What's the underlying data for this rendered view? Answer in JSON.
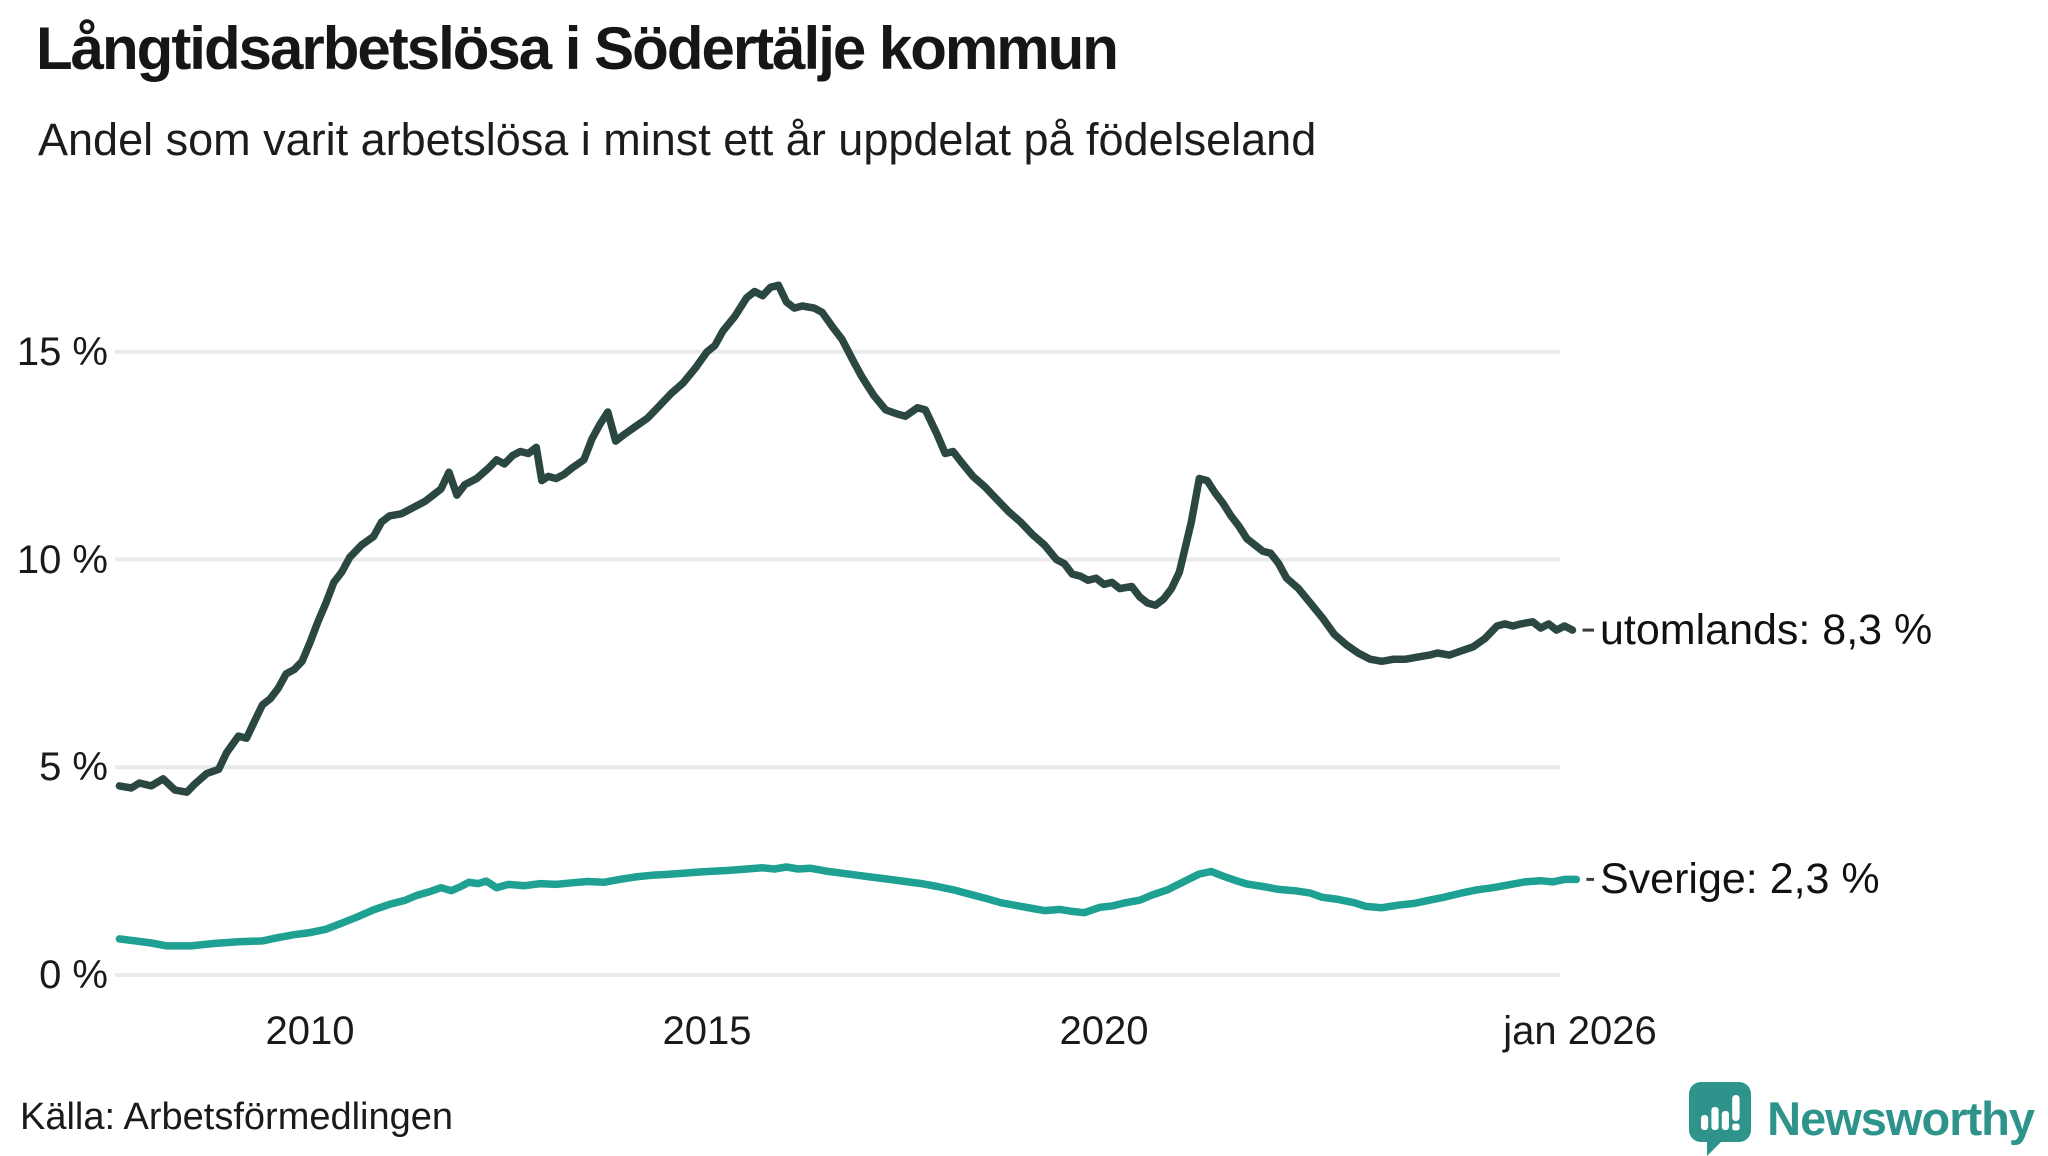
{
  "header": {
    "title": "Långtidsarbetslösa i Södertälje kommun",
    "subtitle": "Andel som varit arbetslösa i minst ett år uppdelat på födelseland"
  },
  "footer": {
    "source": "Källa: Arbetsförmedlingen"
  },
  "branding": {
    "logo_text": "Newsworthy",
    "logo_color": "#2e948b",
    "logo_icon": "bar-chart-speech-bubble-icon"
  },
  "colors": {
    "grid": "#e9e9ee",
    "connector": "#3c3c3c",
    "utomlands_line": "#2b4742",
    "sverige_line": "#1ea192"
  },
  "chart_data": {
    "type": "line",
    "title": "Långtidsarbetslösa i Södertälje kommun",
    "subtitle": "Andel som varit arbetslösa i minst ett år uppdelat på födelseland",
    "grid": true,
    "legend_position": "right-edge-labels",
    "xlim": [
      2007.5,
      2026.2
    ],
    "ylim": [
      0,
      17.5
    ],
    "x_axis": {
      "ticks": [
        {
          "label": "2010",
          "year": 2010
        },
        {
          "label": "2015",
          "year": 2015
        },
        {
          "label": "2020",
          "year": 2020
        },
        {
          "label": "jan 2026",
          "year": 2026
        }
      ]
    },
    "y_axis": {
      "unit": "%",
      "ticks": [
        {
          "label": "15 %",
          "value": 15
        },
        {
          "label": "10 %",
          "value": 10
        },
        {
          "label": "5 %",
          "value": 5
        },
        {
          "label": "0 %",
          "value": 0
        }
      ]
    },
    "series": [
      {
        "name": "utomlands",
        "end_label": "utomlands: 8,3 %",
        "last_value": "8,3 %",
        "color": "#2b4742",
        "points": [
          [
            2007.6,
            4.55
          ],
          [
            2007.75,
            4.5
          ],
          [
            2007.85,
            4.62
          ],
          [
            2008.0,
            4.55
          ],
          [
            2008.15,
            4.72
          ],
          [
            2008.3,
            4.45
          ],
          [
            2008.45,
            4.4
          ],
          [
            2008.55,
            4.6
          ],
          [
            2008.7,
            4.85
          ],
          [
            2008.85,
            4.95
          ],
          [
            2008.95,
            5.35
          ],
          [
            2009.1,
            5.75
          ],
          [
            2009.2,
            5.7
          ],
          [
            2009.3,
            6.1
          ],
          [
            2009.4,
            6.5
          ],
          [
            2009.5,
            6.65
          ],
          [
            2009.6,
            6.9
          ],
          [
            2009.7,
            7.25
          ],
          [
            2009.8,
            7.35
          ],
          [
            2009.9,
            7.55
          ],
          [
            2010.0,
            8.0
          ],
          [
            2010.1,
            8.5
          ],
          [
            2010.2,
            8.95
          ],
          [
            2010.3,
            9.45
          ],
          [
            2010.4,
            9.7
          ],
          [
            2010.5,
            10.05
          ],
          [
            2010.65,
            10.35
          ],
          [
            2010.8,
            10.55
          ],
          [
            2010.9,
            10.9
          ],
          [
            2011.0,
            11.05
          ],
          [
            2011.15,
            11.1
          ],
          [
            2011.3,
            11.25
          ],
          [
            2011.45,
            11.4
          ],
          [
            2011.55,
            11.55
          ],
          [
            2011.65,
            11.7
          ],
          [
            2011.75,
            12.1
          ],
          [
            2011.85,
            11.55
          ],
          [
            2011.95,
            11.8
          ],
          [
            2012.1,
            11.95
          ],
          [
            2012.25,
            12.2
          ],
          [
            2012.35,
            12.4
          ],
          [
            2012.45,
            12.3
          ],
          [
            2012.55,
            12.5
          ],
          [
            2012.65,
            12.6
          ],
          [
            2012.75,
            12.55
          ],
          [
            2012.85,
            12.7
          ],
          [
            2012.92,
            11.9
          ],
          [
            2013.0,
            12.0
          ],
          [
            2013.1,
            11.95
          ],
          [
            2013.2,
            12.05
          ],
          [
            2013.3,
            12.2
          ],
          [
            2013.45,
            12.4
          ],
          [
            2013.55,
            12.9
          ],
          [
            2013.65,
            13.25
          ],
          [
            2013.75,
            13.55
          ],
          [
            2013.85,
            12.85
          ],
          [
            2013.95,
            13.0
          ],
          [
            2014.1,
            13.2
          ],
          [
            2014.25,
            13.4
          ],
          [
            2014.4,
            13.7
          ],
          [
            2014.55,
            14.0
          ],
          [
            2014.7,
            14.25
          ],
          [
            2014.85,
            14.6
          ],
          [
            2015.0,
            15.0
          ],
          [
            2015.1,
            15.15
          ],
          [
            2015.2,
            15.5
          ],
          [
            2015.35,
            15.85
          ],
          [
            2015.5,
            16.3
          ],
          [
            2015.6,
            16.45
          ],
          [
            2015.7,
            16.35
          ],
          [
            2015.8,
            16.55
          ],
          [
            2015.9,
            16.6
          ],
          [
            2016.0,
            16.2
          ],
          [
            2016.1,
            16.05
          ],
          [
            2016.2,
            16.1
          ],
          [
            2016.35,
            16.05
          ],
          [
            2016.45,
            15.95
          ],
          [
            2016.6,
            15.55
          ],
          [
            2016.7,
            15.3
          ],
          [
            2016.85,
            14.75
          ],
          [
            2016.95,
            14.4
          ],
          [
            2017.1,
            13.95
          ],
          [
            2017.25,
            13.6
          ],
          [
            2017.4,
            13.5
          ],
          [
            2017.5,
            13.45
          ],
          [
            2017.65,
            13.65
          ],
          [
            2017.75,
            13.6
          ],
          [
            2017.9,
            13.0
          ],
          [
            2018.0,
            12.55
          ],
          [
            2018.1,
            12.6
          ],
          [
            2018.2,
            12.35
          ],
          [
            2018.35,
            12.0
          ],
          [
            2018.5,
            11.75
          ],
          [
            2018.65,
            11.45
          ],
          [
            2018.8,
            11.15
          ],
          [
            2018.95,
            10.9
          ],
          [
            2019.1,
            10.6
          ],
          [
            2019.25,
            10.35
          ],
          [
            2019.4,
            10.0
          ],
          [
            2019.5,
            9.9
          ],
          [
            2019.6,
            9.65
          ],
          [
            2019.7,
            9.6
          ],
          [
            2019.8,
            9.5
          ],
          [
            2019.9,
            9.55
          ],
          [
            2020.0,
            9.4
          ],
          [
            2020.1,
            9.45
          ],
          [
            2020.2,
            9.3
          ],
          [
            2020.35,
            9.35
          ],
          [
            2020.45,
            9.1
          ],
          [
            2020.55,
            8.95
          ],
          [
            2020.65,
            8.9
          ],
          [
            2020.75,
            9.05
          ],
          [
            2020.85,
            9.3
          ],
          [
            2020.95,
            9.7
          ],
          [
            2021.0,
            10.1
          ],
          [
            2021.1,
            10.9
          ],
          [
            2021.2,
            11.95
          ],
          [
            2021.3,
            11.9
          ],
          [
            2021.4,
            11.6
          ],
          [
            2021.5,
            11.35
          ],
          [
            2021.6,
            11.05
          ],
          [
            2021.7,
            10.8
          ],
          [
            2021.8,
            10.5
          ],
          [
            2021.9,
            10.35
          ],
          [
            2022.0,
            10.2
          ],
          [
            2022.1,
            10.15
          ],
          [
            2022.2,
            9.9
          ],
          [
            2022.3,
            9.55
          ],
          [
            2022.45,
            9.3
          ],
          [
            2022.6,
            8.95
          ],
          [
            2022.75,
            8.6
          ],
          [
            2022.9,
            8.2
          ],
          [
            2023.05,
            7.95
          ],
          [
            2023.2,
            7.75
          ],
          [
            2023.35,
            7.6
          ],
          [
            2023.5,
            7.55
          ],
          [
            2023.65,
            7.6
          ],
          [
            2023.8,
            7.6
          ],
          [
            2023.95,
            7.65
          ],
          [
            2024.1,
            7.7
          ],
          [
            2024.2,
            7.75
          ],
          [
            2024.35,
            7.7
          ],
          [
            2024.5,
            7.8
          ],
          [
            2024.65,
            7.9
          ],
          [
            2024.8,
            8.1
          ],
          [
            2024.95,
            8.4
          ],
          [
            2025.05,
            8.45
          ],
          [
            2025.15,
            8.4
          ],
          [
            2025.25,
            8.45
          ],
          [
            2025.4,
            8.5
          ],
          [
            2025.5,
            8.35
          ],
          [
            2025.6,
            8.45
          ],
          [
            2025.7,
            8.3
          ],
          [
            2025.8,
            8.4
          ],
          [
            2025.9,
            8.3
          ]
        ]
      },
      {
        "name": "Sverige",
        "end_label": "Sverige: 2,3 %",
        "last_value": "2,3 %",
        "color": "#1ea192",
        "points": [
          [
            2007.6,
            0.87
          ],
          [
            2007.8,
            0.82
          ],
          [
            2008.0,
            0.77
          ],
          [
            2008.2,
            0.7
          ],
          [
            2008.5,
            0.7
          ],
          [
            2008.8,
            0.76
          ],
          [
            2009.1,
            0.8
          ],
          [
            2009.4,
            0.82
          ],
          [
            2009.6,
            0.9
          ],
          [
            2009.8,
            0.97
          ],
          [
            2010.0,
            1.02
          ],
          [
            2010.2,
            1.1
          ],
          [
            2010.4,
            1.25
          ],
          [
            2010.6,
            1.4
          ],
          [
            2010.8,
            1.57
          ],
          [
            2011.0,
            1.7
          ],
          [
            2011.2,
            1.8
          ],
          [
            2011.35,
            1.92
          ],
          [
            2011.5,
            2.0
          ],
          [
            2011.65,
            2.1
          ],
          [
            2011.78,
            2.03
          ],
          [
            2011.9,
            2.13
          ],
          [
            2012.0,
            2.23
          ],
          [
            2012.12,
            2.2
          ],
          [
            2012.22,
            2.26
          ],
          [
            2012.35,
            2.1
          ],
          [
            2012.5,
            2.18
          ],
          [
            2012.7,
            2.15
          ],
          [
            2012.9,
            2.2
          ],
          [
            2013.1,
            2.18
          ],
          [
            2013.3,
            2.22
          ],
          [
            2013.5,
            2.25
          ],
          [
            2013.7,
            2.23
          ],
          [
            2013.9,
            2.3
          ],
          [
            2014.1,
            2.36
          ],
          [
            2014.3,
            2.4
          ],
          [
            2014.5,
            2.42
          ],
          [
            2014.7,
            2.45
          ],
          [
            2014.9,
            2.48
          ],
          [
            2015.1,
            2.5
          ],
          [
            2015.3,
            2.52
          ],
          [
            2015.5,
            2.55
          ],
          [
            2015.7,
            2.58
          ],
          [
            2015.85,
            2.55
          ],
          [
            2016.0,
            2.6
          ],
          [
            2016.15,
            2.55
          ],
          [
            2016.3,
            2.57
          ],
          [
            2016.5,
            2.5
          ],
          [
            2016.7,
            2.45
          ],
          [
            2016.9,
            2.4
          ],
          [
            2017.1,
            2.35
          ],
          [
            2017.3,
            2.3
          ],
          [
            2017.5,
            2.25
          ],
          [
            2017.7,
            2.2
          ],
          [
            2017.9,
            2.13
          ],
          [
            2018.1,
            2.05
          ],
          [
            2018.3,
            1.95
          ],
          [
            2018.5,
            1.85
          ],
          [
            2018.7,
            1.74
          ],
          [
            2018.9,
            1.67
          ],
          [
            2019.1,
            1.6
          ],
          [
            2019.25,
            1.55
          ],
          [
            2019.45,
            1.58
          ],
          [
            2019.6,
            1.53
          ],
          [
            2019.75,
            1.5
          ],
          [
            2019.95,
            1.63
          ],
          [
            2020.1,
            1.66
          ],
          [
            2020.25,
            1.73
          ],
          [
            2020.45,
            1.8
          ],
          [
            2020.6,
            1.92
          ],
          [
            2020.8,
            2.05
          ],
          [
            2021.0,
            2.24
          ],
          [
            2021.2,
            2.43
          ],
          [
            2021.35,
            2.49
          ],
          [
            2021.5,
            2.38
          ],
          [
            2021.65,
            2.28
          ],
          [
            2021.8,
            2.19
          ],
          [
            2022.0,
            2.13
          ],
          [
            2022.2,
            2.06
          ],
          [
            2022.4,
            2.03
          ],
          [
            2022.6,
            1.97
          ],
          [
            2022.75,
            1.87
          ],
          [
            2022.95,
            1.82
          ],
          [
            2023.15,
            1.74
          ],
          [
            2023.3,
            1.65
          ],
          [
            2023.5,
            1.62
          ],
          [
            2023.7,
            1.68
          ],
          [
            2023.9,
            1.72
          ],
          [
            2024.1,
            1.8
          ],
          [
            2024.3,
            1.88
          ],
          [
            2024.5,
            1.97
          ],
          [
            2024.7,
            2.05
          ],
          [
            2024.9,
            2.1
          ],
          [
            2025.1,
            2.17
          ],
          [
            2025.3,
            2.24
          ],
          [
            2025.5,
            2.27
          ],
          [
            2025.65,
            2.24
          ],
          [
            2025.8,
            2.3
          ],
          [
            2025.95,
            2.3
          ]
        ]
      }
    ]
  }
}
